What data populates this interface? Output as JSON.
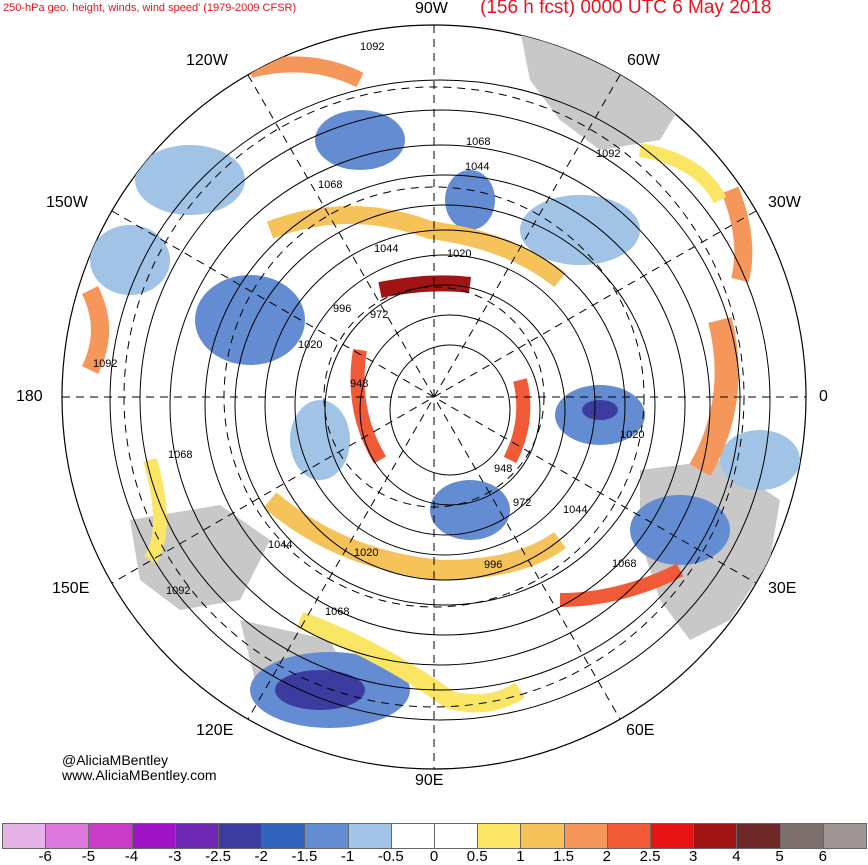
{
  "title": {
    "left": "250-hPa geo. height, winds, wind speed' (1979-2009 CFSR)",
    "right": "(156 h fcst) 0000 UTC 6 May 2018"
  },
  "longitude_labels": {
    "top": "90W",
    "top_left": "120W",
    "top_right": "60W",
    "left_upper": "150W",
    "right_upper": "30W",
    "left": "180",
    "right": "0",
    "left_lower": "150E",
    "right_lower": "30E",
    "bottom_left": "120E",
    "bottom_right": "60E",
    "bottom": "90E"
  },
  "contour_labels": [
    "1092",
    "1068",
    "1044",
    "1020",
    "996",
    "972",
    "948",
    "1020",
    "1044",
    "1068",
    "1092",
    "1068",
    "1044",
    "1020",
    "996",
    "972",
    "948",
    "1092",
    "1068",
    "1044",
    "1020",
    "1092",
    "1068"
  ],
  "credit": {
    "line1": "@AliciaMBentley",
    "line2": "www.AliciaMBentley.com"
  },
  "colorbar": {
    "labels": [
      "-6",
      "-5",
      "-4",
      "-3",
      "-2.5",
      "-2",
      "-1.5",
      "-1",
      "-0.5",
      "0",
      "0.5",
      "1",
      "1.5",
      "2",
      "2.5",
      "3",
      "4",
      "5",
      "6"
    ],
    "colors": [
      "#e6b3e6",
      "#dc78dc",
      "#c83cc8",
      "#a014c8",
      "#6e28b4",
      "#3c3ca0",
      "#3264be",
      "#648cd2",
      "#a0c3e6",
      "#ffffff",
      "#ffffff",
      "#fae664",
      "#f5c35a",
      "#f5965a",
      "#f05a37",
      "#e61414",
      "#a01414",
      "#6e2828",
      "#7d6e6e",
      "#a09696"
    ]
  }
}
